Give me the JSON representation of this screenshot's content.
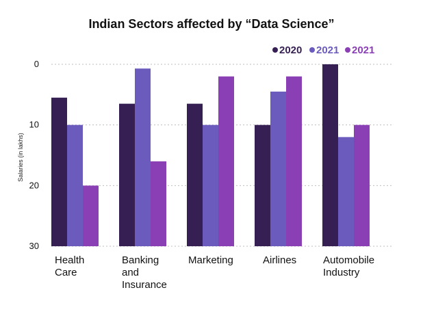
{
  "chart_data": {
    "type": "bar",
    "title": "Indian Sectors affected by “Data Science”",
    "xlabel": "",
    "ylabel": "Salaries (in lakhs)",
    "ylim": [
      0,
      30
    ],
    "y_inverted": true,
    "y_ticks": [
      0,
      10,
      20,
      30
    ],
    "grid": true,
    "legend_position": "top-right",
    "categories": [
      [
        "Health",
        "Care"
      ],
      [
        "Banking",
        "and",
        "Insurance"
      ],
      [
        "Marketing"
      ],
      [
        "Airlines"
      ],
      [
        "Automobile",
        "Industry"
      ]
    ],
    "series": [
      {
        "name": "2020",
        "color": "#361f52",
        "values": [
          5.5,
          6.5,
          6.5,
          10,
          0
        ]
      },
      {
        "name": "2021",
        "color": "#6b5bbd",
        "values": [
          10,
          0.7,
          10,
          4.5,
          12
        ]
      },
      {
        "name": "2021",
        "color": "#8a3fb5",
        "values": [
          20,
          16,
          2,
          2,
          10
        ]
      }
    ]
  }
}
